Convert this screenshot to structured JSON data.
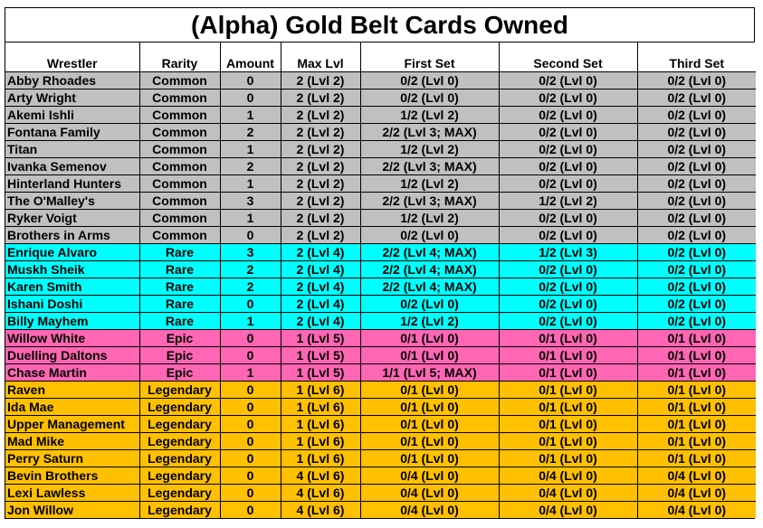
{
  "title": "(Alpha) Gold Belt Cards Owned",
  "columns": [
    "Wrestler",
    "Rarity",
    "Amount",
    "Max Lvl",
    "First Set",
    "Second Set",
    "Third Set"
  ],
  "colors": {
    "Common": "#c0c0c0",
    "Rare": "#00ffff",
    "Epic": "#ff66b3",
    "Legendary": "#ffc000"
  },
  "rows": [
    [
      "Abby Rhoades",
      "Common",
      "0",
      "2 (Lvl 2)",
      "0/2 (Lvl 0)",
      "0/2 (Lvl 0)",
      "0/2 (Lvl 0)"
    ],
    [
      "Arty Wright",
      "Common",
      "0",
      "2 (Lvl 2)",
      "0/2 (Lvl 0)",
      "0/2 (Lvl 0)",
      "0/2 (Lvl 0)"
    ],
    [
      "Akemi Ishli",
      "Common",
      "1",
      "2 (Lvl 2)",
      "1/2 (Lvl 2)",
      "0/2 (Lvl 0)",
      "0/2 (Lvl 0)"
    ],
    [
      "Fontana Family",
      "Common",
      "2",
      "2 (Lvl 2)",
      "2/2 (Lvl 3; MAX)",
      "0/2 (Lvl 0)",
      "0/2 (Lvl 0)"
    ],
    [
      "Titan",
      "Common",
      "1",
      "2 (Lvl 2)",
      "1/2 (Lvl 2)",
      "0/2 (Lvl 0)",
      "0/2 (Lvl 0)"
    ],
    [
      "Ivanka Semenov",
      "Common",
      "2",
      "2 (Lvl 2)",
      "2/2 (Lvl 3; MAX)",
      "0/2 (Lvl 0)",
      "0/2 (Lvl 0)"
    ],
    [
      "Hinterland Hunters",
      "Common",
      "1",
      "2 (Lvl 2)",
      "1/2 (Lvl 2)",
      "0/2 (Lvl 0)",
      "0/2 (Lvl 0)"
    ],
    [
      "The O'Malley's",
      "Common",
      "3",
      "2 (Lvl 2)",
      "2/2 (Lvl 3; MAX)",
      "1/2 (Lvl 2)",
      "0/2 (Lvl 0)"
    ],
    [
      "Ryker Voigt",
      "Common",
      "1",
      "2 (Lvl 2)",
      "1/2 (Lvl 2)",
      "0/2 (Lvl 0)",
      "0/2 (Lvl 0)"
    ],
    [
      "Brothers in Arms",
      "Common",
      "0",
      "2 (Lvl 2)",
      "0/2 (Lvl 0)",
      "0/2 (Lvl 0)",
      "0/2 (Lvl 0)"
    ],
    [
      "Enrique Alvaro",
      "Rare",
      "3",
      "2 (Lvl 4)",
      "2/2 (Lvl 4; MAX)",
      "1/2 (Lvl 3)",
      "0/2 (Lvl 0)"
    ],
    [
      "Muskh Sheik",
      "Rare",
      "2",
      "2 (Lvl 4)",
      "2/2 (Lvl 4; MAX)",
      "0/2 (Lvl 0)",
      "0/2 (Lvl 0)"
    ],
    [
      "Karen Smith",
      "Rare",
      "2",
      "2 (Lvl 4)",
      "2/2 (Lvl 4; MAX)",
      "0/2 (Lvl 0)",
      "0/2 (Lvl 0)"
    ],
    [
      "Ishani Doshi",
      "Rare",
      "0",
      "2 (Lvl 4)",
      "0/2 (Lvl 0)",
      "0/2 (Lvl 0)",
      "0/2 (Lvl 0)"
    ],
    [
      "Billy Mayhem",
      "Rare",
      "1",
      "2 (Lvl 4)",
      "1/2 (Lvl 2)",
      "0/2 (Lvl 0)",
      "0/2 (Lvl 0)"
    ],
    [
      "Willow White",
      "Epic",
      "0",
      "1 (Lvl 5)",
      "0/1 (Lvl 0)",
      "0/1 (Lvl 0)",
      "0/1 (Lvl 0)"
    ],
    [
      "Duelling Daltons",
      "Epic",
      "0",
      "1 (Lvl 5)",
      "0/1 (Lvl 0)",
      "0/1 (Lvl 0)",
      "0/1 (Lvl 0)"
    ],
    [
      "Chase Martin",
      "Epic",
      "1",
      "1 (Lvl 5)",
      "1/1 (Lvl 5; MAX)",
      "0/1 (Lvl 0)",
      "0/1 (Lvl 0)"
    ],
    [
      "Raven",
      "Legendary",
      "0",
      "1 (Lvl 6)",
      "0/1 (Lvl 0)",
      "0/1 (Lvl 0)",
      "0/1 (Lvl 0)"
    ],
    [
      "Ida Mae",
      "Legendary",
      "0",
      "1 (Lvl 6)",
      "0/1 (Lvl 0)",
      "0/1 (Lvl 0)",
      "0/1 (Lvl 0)"
    ],
    [
      "Upper Management",
      "Legendary",
      "0",
      "1 (Lvl 6)",
      "0/1 (Lvl 0)",
      "0/1 (Lvl 0)",
      "0/1 (Lvl 0)"
    ],
    [
      "Mad Mike",
      "Legendary",
      "0",
      "1 (Lvl 6)",
      "0/1 (Lvl 0)",
      "0/1 (Lvl 0)",
      "0/1 (Lvl 0)"
    ],
    [
      "Perry Saturn",
      "Legendary",
      "0",
      "1 (Lvl 6)",
      "0/1 (Lvl 0)",
      "0/1 (Lvl 0)",
      "0/1 (Lvl 0)"
    ],
    [
      "Bevin Brothers",
      "Legendary",
      "0",
      "4 (Lvl 6)",
      "0/4 (Lvl 0)",
      "0/4 (Lvl 0)",
      "0/4 (Lvl 0)"
    ],
    [
      "Lexi Lawless",
      "Legendary",
      "0",
      "4 (Lvl 6)",
      "0/4 (Lvl 0)",
      "0/4 (Lvl 0)",
      "0/4 (Lvl 0)"
    ],
    [
      "Jon Willow",
      "Legendary",
      "0",
      "4 (Lvl 6)",
      "0/4 (Lvl 0)",
      "0/4 (Lvl 0)",
      "0/4 (Lvl 0)"
    ]
  ]
}
